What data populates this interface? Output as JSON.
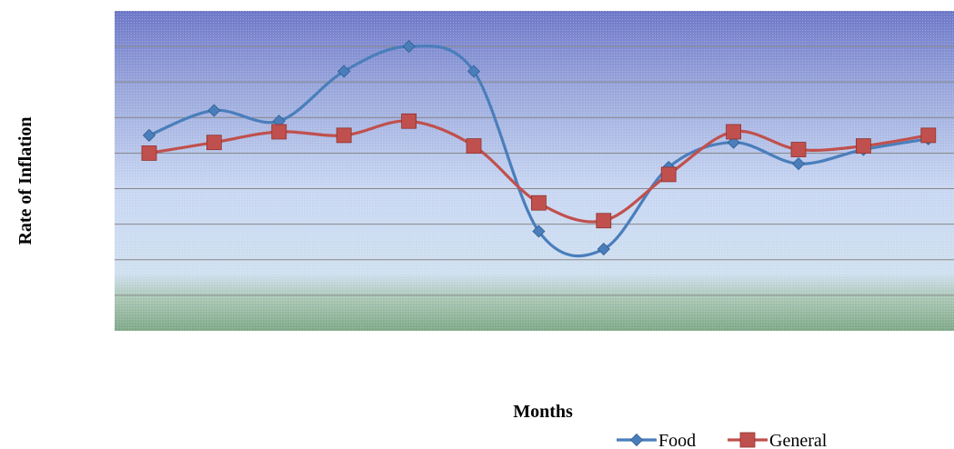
{
  "chart_data": {
    "type": "line",
    "title": "",
    "xlabel": "Months",
    "ylabel": "Rate of Inflation",
    "x": [
      1,
      2,
      3,
      4,
      5,
      6,
      7,
      8,
      9,
      10,
      11,
      12,
      13
    ],
    "ylim": [
      0,
      9
    ],
    "grid": true,
    "legend": "bottom-right",
    "series": [
      {
        "name": "Food",
        "color": "#4a7ebb",
        "marker": "diamond",
        "values": [
          5.5,
          6.2,
          5.9,
          7.3,
          8.0,
          7.3,
          2.8,
          2.3,
          4.6,
          5.3,
          4.7,
          5.1,
          5.4
        ]
      },
      {
        "name": "General",
        "color": "#c0504d",
        "marker": "square",
        "values": [
          5.0,
          5.3,
          5.6,
          5.5,
          5.9,
          5.2,
          3.6,
          3.1,
          4.4,
          5.6,
          5.1,
          5.2,
          5.5
        ]
      }
    ]
  }
}
